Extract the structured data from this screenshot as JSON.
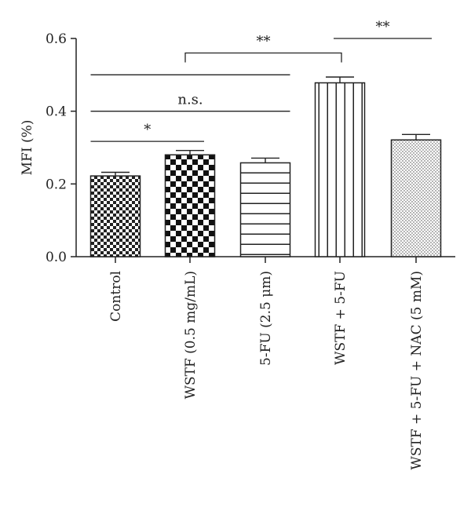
{
  "chart_data": {
    "type": "bar",
    "title": "",
    "xlabel": "",
    "ylabel": "MFI (%)",
    "ylim": [
      0,
      0.6
    ],
    "yticks": [
      "0.0",
      "0.2",
      "0.4",
      "0.6"
    ],
    "grid": false,
    "categories": [
      "Control",
      "WSTF (0.5 mg/mL)",
      "5-FU (2.5 μm)",
      "WSTF + 5-FU",
      "WSTF + 5-FU + NAC (5 mM)"
    ],
    "values": [
      0.222,
      0.28,
      0.258,
      0.478,
      0.321
    ],
    "errors": [
      0.01,
      0.012,
      0.013,
      0.016,
      0.015
    ],
    "patterns": [
      "small-checker",
      "large-checker",
      "horizontal-stripes",
      "vertical-stripes",
      "dots"
    ],
    "significance": [
      {
        "from": 0,
        "to": 1,
        "label": "*",
        "y": 0.317
      },
      {
        "from": 0,
        "to": 2,
        "label": "n.s.",
        "y": 0.4
      },
      {
        "from": 0,
        "to": 2,
        "label": "",
        "y": 0.5
      },
      {
        "from": 1,
        "to": 3,
        "label": "**",
        "y": 0.56,
        "drops": true
      },
      {
        "from": 3,
        "to": 4,
        "label": "**",
        "y": 0.6
      }
    ]
  }
}
